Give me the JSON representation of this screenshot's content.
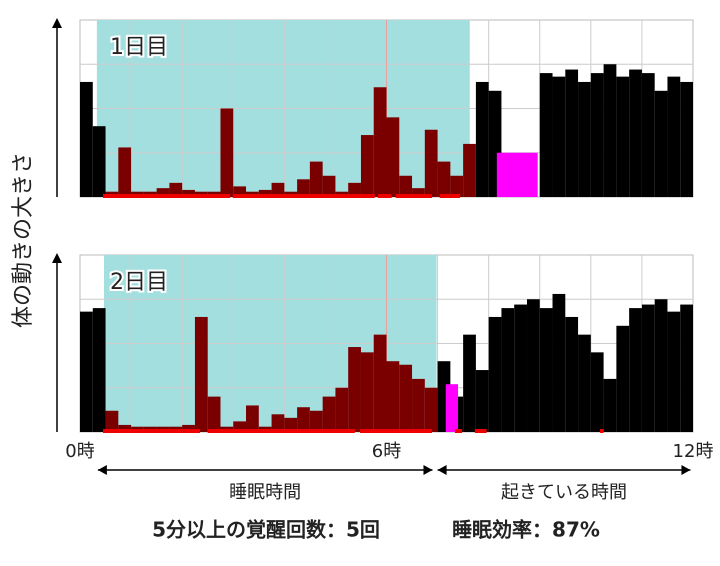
{
  "chart_data": {
    "type": "bar",
    "y_label": "体の動きの大きさ",
    "xlim": [
      0,
      12
    ],
    "ylim": [
      0,
      100
    ],
    "xticks": [
      {
        "value": 0,
        "label": "0時"
      },
      {
        "value": 6,
        "label": "6時"
      },
      {
        "value": 12,
        "label": "12時"
      }
    ],
    "xgrid": [
      1,
      2,
      3,
      4,
      5,
      6,
      7,
      8,
      9,
      10,
      11
    ],
    "ygrid": [
      25,
      50,
      75
    ],
    "x": [
      0,
      0.25,
      0.5,
      0.75,
      1,
      1.25,
      1.5,
      1.75,
      2,
      2.25,
      2.5,
      2.75,
      3,
      3.25,
      3.5,
      3.75,
      4,
      4.25,
      4.5,
      4.75,
      5,
      5.25,
      5.5,
      5.75,
      6,
      6.25,
      6.5,
      6.75,
      7,
      7.25,
      7.5,
      7.75,
      8,
      8.25,
      8.5,
      8.75,
      9,
      9.25,
      9.5,
      9.75,
      10,
      10.25,
      10.5,
      10.75,
      11,
      11.25,
      11.5,
      11.75
    ],
    "spans": [
      {
        "label": "睡眠時間",
        "start": 0.35,
        "end": 6.9
      },
      {
        "label": "起きている時間",
        "start": 7.0,
        "end": 11.95
      }
    ],
    "footer": [
      "5分以上の覚醒回数：5回",
      "睡眠効率：87%"
    ],
    "panels": [
      {
        "label": "1日目",
        "sleep_period": [
          0.33,
          7.63
        ],
        "off_wrist": {
          "start": 8.16,
          "end": 8.96,
          "value": 25
        },
        "sleep_segments": [
          [
            0.45,
            2.94
          ],
          [
            2.99,
            5.77
          ],
          [
            5.83,
            6.1
          ],
          [
            6.18,
            6.89
          ],
          [
            7.04,
            7.44
          ]
        ],
        "series": [
          {
            "color": "#000000",
            "sleep_color": "#7a0000",
            "values": [
              65,
              40,
              3,
              28,
              3,
              3,
              5,
              8,
              4,
              3,
              3,
              50,
              6,
              3,
              4,
              8,
              3,
              10,
              20,
              12,
              3,
              8,
              35,
              62,
              45,
              12,
              5,
              38,
              20,
              12,
              30,
              65,
              60,
              0,
              0,
              0,
              70,
              68,
              72,
              65,
              70,
              75,
              68,
              72,
              70,
              60,
              68,
              65
            ]
          }
        ]
      },
      {
        "label": "2日目",
        "sleep_period": [
          0.47,
          6.98
        ],
        "off_wrist": {
          "start": 7.16,
          "end": 7.4,
          "value": 27
        },
        "sleep_segments": [
          [
            0.45,
            2.35
          ],
          [
            2.5,
            5.38
          ],
          [
            5.48,
            6.89
          ],
          [
            7.34,
            7.48
          ],
          [
            7.73,
            7.96
          ],
          [
            10.18,
            10.25
          ]
        ],
        "series": [
          {
            "color": "#000000",
            "sleep_color": "#7a0000",
            "values": [
              68,
              70,
              12,
              4,
              3,
              3,
              3,
              3,
              4,
              65,
              20,
              3,
              6,
              15,
              3,
              10,
              8,
              14,
              12,
              20,
              25,
              48,
              45,
              55,
              40,
              38,
              30,
              25,
              40,
              20,
              55,
              35,
              65,
              70,
              72,
              75,
              70,
              78,
              65,
              55,
              45,
              30,
              60,
              70,
              72,
              75,
              68,
              72
            ]
          }
        ]
      }
    ]
  }
}
